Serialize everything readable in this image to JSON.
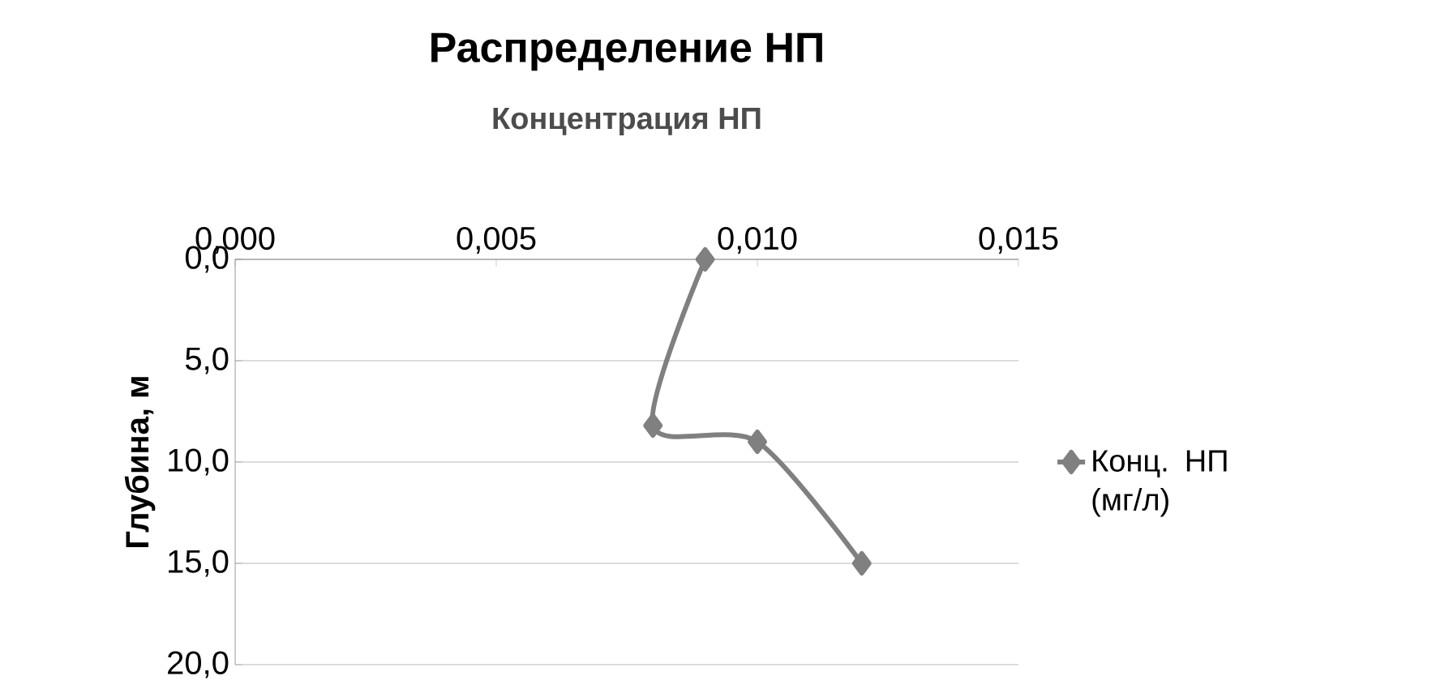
{
  "chart_data": {
    "type": "line",
    "title": "Распределение НП",
    "xlabel": "Концентрация НП",
    "ylabel": "Глубина, м",
    "series": [
      {
        "name": "Конц. НП (мг/л)",
        "color": "#808080",
        "x": [
          0.009,
          0.008,
          0.01,
          0.012
        ],
        "values": [
          0,
          8.2,
          9,
          15
        ]
      }
    ],
    "xlim": [
      0,
      0.015
    ],
    "xticks": [
      {
        "value": 0,
        "label": "0,000"
      },
      {
        "value": 0.005,
        "label": "0,005"
      },
      {
        "value": 0.01,
        "label": "0,010"
      },
      {
        "value": 0.015,
        "label": "0,015"
      }
    ],
    "ylim": [
      20,
      0
    ],
    "yticks": [
      {
        "value": 0,
        "label": "0,0"
      },
      {
        "value": 5,
        "label": "5,0"
      },
      {
        "value": 10,
        "label": "10,0"
      },
      {
        "value": 15,
        "label": "15,0"
      },
      {
        "value": 20,
        "label": "20,0"
      }
    ],
    "grid": "y",
    "legend": "right",
    "marker": "diamond",
    "line_style": "solid"
  }
}
